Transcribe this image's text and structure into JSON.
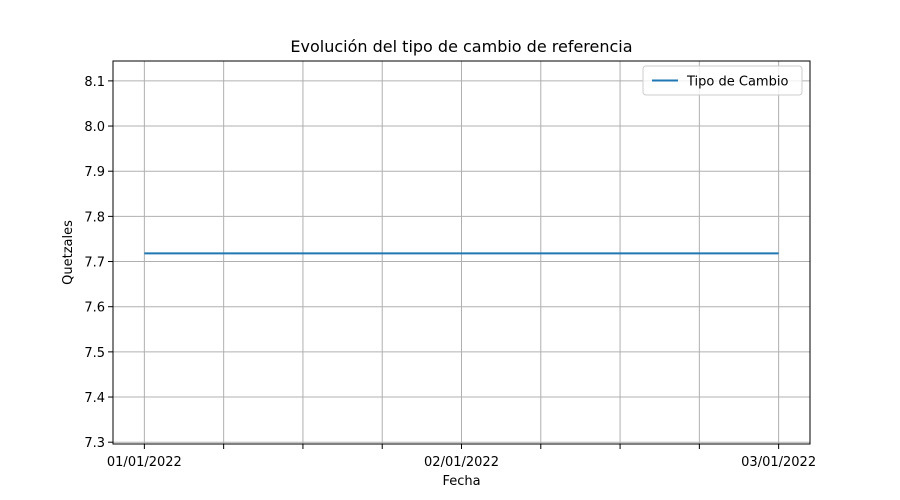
{
  "chart_data": {
    "type": "line",
    "title": "Evolución del tipo de cambio de referencia",
    "xlabel": "Fecha",
    "ylabel": "Quetzales",
    "x": [
      "01/01/2022",
      "02/01/2022",
      "03/01/2022"
    ],
    "x_ticks": [
      "01/01/2022",
      "02/01/2022",
      "03/01/2022"
    ],
    "xlim": [
      "01/01/2022",
      "03/01/2022"
    ],
    "y_ticks": [
      "7.3",
      "7.4",
      "7.5",
      "7.6",
      "7.7",
      "7.8",
      "7.9",
      "8.0",
      "8.1"
    ],
    "ylim": [
      7.296,
      8.144
    ],
    "series": [
      {
        "name": "Tipo de Cambio",
        "values": [
          7.718,
          7.718,
          7.718
        ],
        "color": "#1f77b4"
      }
    ],
    "grid": true,
    "legend": "top-right"
  }
}
